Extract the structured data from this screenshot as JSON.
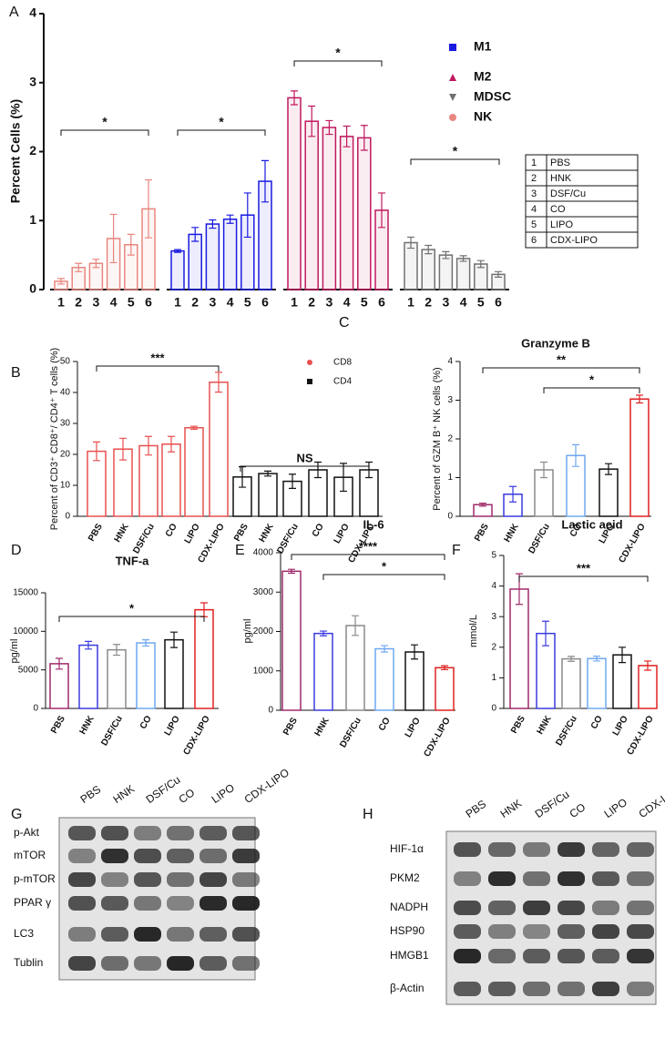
{
  "chart_data": [
    {
      "panel": "A",
      "type": "bar",
      "y_label": "Percent Cells (%)",
      "categories": [
        "1",
        "2",
        "3",
        "4",
        "5",
        "6"
      ],
      "series": [
        {
          "name": "M1",
          "color": "#1a1ae0",
          "marker": "square",
          "values": [
            0.56,
            0.8,
            0.95,
            1.02,
            1.08,
            1.57
          ],
          "errors": [
            0.02,
            0.1,
            0.06,
            0.06,
            0.32,
            0.3
          ]
        },
        {
          "name": "M2",
          "color": "#c0185e",
          "marker": "triangle",
          "values": [
            2.78,
            2.44,
            2.35,
            2.22,
            2.2,
            1.15
          ],
          "errors": [
            0.1,
            0.22,
            0.1,
            0.15,
            0.18,
            0.25
          ]
        },
        {
          "name": "MDSC",
          "color": "#707070",
          "marker": "triangle-down",
          "values": [
            0.68,
            0.58,
            0.5,
            0.45,
            0.37,
            0.22
          ],
          "errors": [
            0.08,
            0.06,
            0.05,
            0.04,
            0.05,
            0.04
          ]
        },
        {
          "name": "NK",
          "color": "#e8867f",
          "marker": "circle",
          "values": [
            0.12,
            0.32,
            0.38,
            0.74,
            0.65,
            1.17
          ],
          "errors": [
            0.04,
            0.06,
            0.06,
            0.35,
            0.15,
            0.42
          ]
        }
      ],
      "ylim": [
        0,
        4
      ],
      "yticks": [
        0,
        1,
        2,
        3,
        4
      ],
      "annotations": [
        "*",
        "*",
        "*",
        "*"
      ],
      "legend_table": [
        [
          "1",
          "PBS"
        ],
        [
          "2",
          "HNK"
        ],
        [
          "3",
          "DSF/Cu"
        ],
        [
          "4",
          "CO"
        ],
        [
          "5",
          "LIPO"
        ],
        [
          "6",
          "CDX-LIPO"
        ]
      ]
    },
    {
      "panel": "B",
      "type": "bar",
      "y_label": "Percent of CD3⁺ CD8⁺/ CD4⁺ T cells (%)",
      "categories": [
        "PBS",
        "HNK",
        "DSF/Cu",
        "CO",
        "LIPO",
        "CDX-LIPO"
      ],
      "series": [
        {
          "name": "CD8",
          "color": "#e8504f",
          "marker": "circle",
          "values": [
            21,
            21.7,
            22.8,
            23.3,
            28.6,
            43.3
          ],
          "errors": [
            3,
            3.5,
            3,
            2.5,
            0.5,
            3.2
          ]
        },
        {
          "name": "CD4",
          "color": "#111111",
          "marker": "square",
          "values": [
            12.7,
            13.8,
            11.3,
            15,
            12.6,
            15
          ],
          "errors": [
            3.3,
            0.8,
            2.3,
            2.5,
            4.5,
            2.5
          ]
        }
      ],
      "ylim": [
        0,
        50
      ],
      "yticks": [
        0,
        10,
        20,
        30,
        40,
        50
      ],
      "annotations": [
        "***",
        "NS"
      ]
    },
    {
      "panel": "C",
      "type": "bar",
      "title": "Granzyme B",
      "y_label": "Percent of GZM B⁺ NK cells (%)",
      "categories": [
        "PBS",
        "HNK",
        "DSF/Cu",
        "CO",
        "LIPO",
        "CDX-LIPO"
      ],
      "values": [
        0.3,
        0.57,
        1.2,
        1.57,
        1.22,
        3.03
      ],
      "errors": [
        0.04,
        0.2,
        0.2,
        0.28,
        0.14,
        0.1
      ],
      "colors": [
        "#a02a6a",
        "#3a3ae0",
        "#8a8a8a",
        "#6fa8f0",
        "#111111",
        "#e02020"
      ],
      "ylim": [
        0,
        4
      ],
      "yticks": [
        0,
        1,
        2,
        3,
        4
      ],
      "annotations": [
        "**",
        "*"
      ]
    },
    {
      "panel": "D",
      "type": "bar",
      "title": "TNF-a",
      "y_label": "pg/ml",
      "categories": [
        "PBS",
        "HNK",
        "DSF/Cu",
        "CO",
        "LIPO",
        "CDX-LIPO"
      ],
      "values": [
        5800,
        8200,
        7600,
        8500,
        8900,
        12800
      ],
      "errors": [
        700,
        500,
        700,
        400,
        1000,
        900
      ],
      "colors": [
        "#a02a6a",
        "#3a3ae0",
        "#8a8a8a",
        "#6fa8f0",
        "#111111",
        "#e02020"
      ],
      "ylim": [
        0,
        15000
      ],
      "yticks": [
        0,
        5000,
        10000,
        15000
      ],
      "annotations": [
        "*"
      ]
    },
    {
      "panel": "E",
      "type": "bar",
      "title": "IL-6",
      "y_label": "pg/ml",
      "categories": [
        "PBS",
        "HNK",
        "DSF/Cu",
        "CO",
        "LIPO",
        "CDX-LIPO"
      ],
      "values": [
        3530,
        1950,
        2150,
        1560,
        1480,
        1080
      ],
      "errors": [
        50,
        60,
        250,
        80,
        180,
        50
      ],
      "colors": [
        "#a02a6a",
        "#3a3ae0",
        "#8a8a8a",
        "#6fa8f0",
        "#111111",
        "#e02020"
      ],
      "ylim": [
        0,
        4000
      ],
      "yticks": [
        0,
        1000,
        2000,
        3000,
        4000
      ],
      "annotations": [
        "****",
        "*"
      ]
    },
    {
      "panel": "F",
      "type": "bar",
      "title": "Lactic acid",
      "y_label": "mmol/L",
      "categories": [
        "PBS",
        "HNK",
        "DSF/Cu",
        "CO",
        "LIPO",
        "CDX-LIPO"
      ],
      "values": [
        3.9,
        2.45,
        1.62,
        1.63,
        1.75,
        1.4
      ],
      "errors": [
        0.5,
        0.4,
        0.08,
        0.08,
        0.25,
        0.15
      ],
      "colors": [
        "#a02a6a",
        "#3a3ae0",
        "#8a8a8a",
        "#6fa8f0",
        "#111111",
        "#e02020"
      ],
      "ylim": [
        0,
        5
      ],
      "yticks": [
        0,
        1,
        2,
        3,
        4,
        5
      ],
      "annotations": [
        "***"
      ]
    }
  ],
  "blots": [
    {
      "panel": "G",
      "lanes": [
        "PBS",
        "HNK",
        "DSF/Cu",
        "CO",
        "LIPO",
        "CDX-LIPO"
      ],
      "proteins": [
        "p-Akt",
        "mTOR",
        "p-mTOR",
        "PPAR γ",
        "LC3",
        "Tublin"
      ]
    },
    {
      "panel": "H",
      "lanes": [
        "PBS",
        "HNK",
        "DSF/Cu",
        "CO",
        "LIPO",
        "CDX-LIPO"
      ],
      "proteins": [
        "HIF-1α",
        "PKM2",
        "NADPH",
        "HSP90",
        "HMGB1",
        "β-Actin"
      ]
    }
  ]
}
